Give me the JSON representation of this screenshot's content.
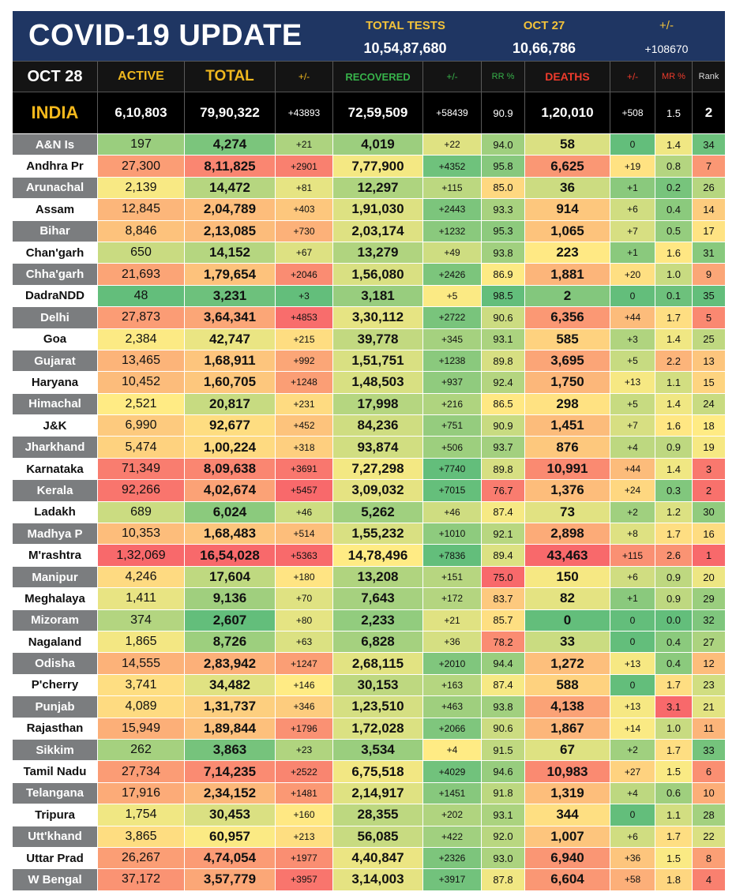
{
  "banner": {
    "title": "COVID-19 UPDATE",
    "total_tests_label": "TOTAL TESTS",
    "total_tests_value": "10,54,87,680",
    "date_label": "OCT 27",
    "date_value": "10,66,786",
    "delta_label": "+/-",
    "delta_value": "+108670"
  },
  "header": {
    "date": "OCT 28",
    "active": "ACTIVE",
    "total": "TOTAL",
    "pm1": "+/-",
    "recovered": "RECOVERED",
    "pm2": "+/-",
    "rr": "RR %",
    "deaths": "DEATHS",
    "pm3": "+/-",
    "mr": "MR %",
    "rank": "Rank"
  },
  "india": {
    "name": "INDIA",
    "active": "6,10,803",
    "total": "79,90,322",
    "total_delta": "+43893",
    "recovered": "72,59,509",
    "recovered_delta": "+58439",
    "rr": "90.9",
    "deaths": "1,20,010",
    "deaths_delta": "+508",
    "mr": "1.5",
    "rank": "2"
  },
  "colors": {
    "banner": "#1f3663",
    "header_bg": "#141414",
    "accent_yellow": "#f0b81e",
    "accent_green": "#37b24a",
    "accent_red": "#ef3b2c"
  },
  "rows": [
    {
      "state": "A&N Is",
      "active": "197",
      "total": "4,274",
      "td": "+21",
      "rec": "4,019",
      "rd": "+22",
      "rr": "94.0",
      "deaths": "58",
      "dd": "0",
      "mr": "1.4",
      "rank": "34"
    },
    {
      "state": "Andhra Pr",
      "active": "27,300",
      "total": "8,11,825",
      "td": "+2901",
      "rec": "7,77,900",
      "rd": "+4352",
      "rr": "95.8",
      "deaths": "6,625",
      "dd": "+19",
      "mr": "0.8",
      "rank": "7"
    },
    {
      "state": "Arunachal",
      "active": "2,139",
      "total": "14,472",
      "td": "+81",
      "rec": "12,297",
      "rd": "+115",
      "rr": "85.0",
      "deaths": "36",
      "dd": "+1",
      "mr": "0.2",
      "rank": "26"
    },
    {
      "state": "Assam",
      "active": "12,845",
      "total": "2,04,789",
      "td": "+403",
      "rec": "1,91,030",
      "rd": "+2443",
      "rr": "93.3",
      "deaths": "914",
      "dd": "+6",
      "mr": "0.4",
      "rank": "14"
    },
    {
      "state": "Bihar",
      "active": "8,846",
      "total": "2,13,085",
      "td": "+730",
      "rec": "2,03,174",
      "rd": "+1232",
      "rr": "95.3",
      "deaths": "1,065",
      "dd": "+7",
      "mr": "0.5",
      "rank": "17"
    },
    {
      "state": "Chan'garh",
      "active": "650",
      "total": "14,152",
      "td": "+67",
      "rec": "13,279",
      "rd": "+49",
      "rr": "93.8",
      "deaths": "223",
      "dd": "+1",
      "mr": "1.6",
      "rank": "31"
    },
    {
      "state": "Chha'garh",
      "active": "21,693",
      "total": "1,79,654",
      "td": "+2046",
      "rec": "1,56,080",
      "rd": "+2426",
      "rr": "86.9",
      "deaths": "1,881",
      "dd": "+20",
      "mr": "1.0",
      "rank": "9"
    },
    {
      "state": "DadraNDD",
      "active": "48",
      "total": "3,231",
      "td": "+3",
      "rec": "3,181",
      "rd": "+5",
      "rr": "98.5",
      "deaths": "2",
      "dd": "0",
      "mr": "0.1",
      "rank": "35"
    },
    {
      "state": "Delhi",
      "active": "27,873",
      "total": "3,64,341",
      "td": "+4853",
      "rec": "3,30,112",
      "rd": "+2722",
      "rr": "90.6",
      "deaths": "6,356",
      "dd": "+44",
      "mr": "1.7",
      "rank": "5"
    },
    {
      "state": "Goa",
      "active": "2,384",
      "total": "42,747",
      "td": "+215",
      "rec": "39,778",
      "rd": "+345",
      "rr": "93.1",
      "deaths": "585",
      "dd": "+3",
      "mr": "1.4",
      "rank": "25"
    },
    {
      "state": "Gujarat",
      "active": "13,465",
      "total": "1,68,911",
      "td": "+992",
      "rec": "1,51,751",
      "rd": "+1238",
      "rr": "89.8",
      "deaths": "3,695",
      "dd": "+5",
      "mr": "2.2",
      "rank": "13"
    },
    {
      "state": "Haryana",
      "active": "10,452",
      "total": "1,60,705",
      "td": "+1248",
      "rec": "1,48,503",
      "rd": "+937",
      "rr": "92.4",
      "deaths": "1,750",
      "dd": "+13",
      "mr": "1.1",
      "rank": "15"
    },
    {
      "state": "Himachal",
      "active": "2,521",
      "total": "20,817",
      "td": "+231",
      "rec": "17,998",
      "rd": "+216",
      "rr": "86.5",
      "deaths": "298",
      "dd": "+5",
      "mr": "1.4",
      "rank": "24"
    },
    {
      "state": "J&K",
      "active": "6,990",
      "total": "92,677",
      "td": "+452",
      "rec": "84,236",
      "rd": "+751",
      "rr": "90.9",
      "deaths": "1,451",
      "dd": "+7",
      "mr": "1.6",
      "rank": "18"
    },
    {
      "state": "Jharkhand",
      "active": "5,474",
      "total": "1,00,224",
      "td": "+318",
      "rec": "93,874",
      "rd": "+506",
      "rr": "93.7",
      "deaths": "876",
      "dd": "+4",
      "mr": "0.9",
      "rank": "19"
    },
    {
      "state": "Karnataka",
      "active": "71,349",
      "total": "8,09,638",
      "td": "+3691",
      "rec": "7,27,298",
      "rd": "+7740",
      "rr": "89.8",
      "deaths": "10,991",
      "dd": "+44",
      "mr": "1.4",
      "rank": "3"
    },
    {
      "state": "Kerala",
      "active": "92,266",
      "total": "4,02,674",
      "td": "+5457",
      "rec": "3,09,032",
      "rd": "+7015",
      "rr": "76.7",
      "deaths": "1,376",
      "dd": "+24",
      "mr": "0.3",
      "rank": "2"
    },
    {
      "state": "Ladakh",
      "active": "689",
      "total": "6,024",
      "td": "+46",
      "rec": "5,262",
      "rd": "+46",
      "rr": "87.4",
      "deaths": "73",
      "dd": "+2",
      "mr": "1.2",
      "rank": "30"
    },
    {
      "state": "Madhya P",
      "active": "10,353",
      "total": "1,68,483",
      "td": "+514",
      "rec": "1,55,232",
      "rd": "+1010",
      "rr": "92.1",
      "deaths": "2,898",
      "dd": "+8",
      "mr": "1.7",
      "rank": "16"
    },
    {
      "state": "M'rashtra",
      "active": "1,32,069",
      "total": "16,54,028",
      "td": "+5363",
      "rec": "14,78,496",
      "rd": "+7836",
      "rr": "89.4",
      "deaths": "43,463",
      "dd": "+115",
      "mr": "2.6",
      "rank": "1"
    },
    {
      "state": "Manipur",
      "active": "4,246",
      "total": "17,604",
      "td": "+180",
      "rec": "13,208",
      "rd": "+151",
      "rr": "75.0",
      "deaths": "150",
      "dd": "+6",
      "mr": "0.9",
      "rank": "20"
    },
    {
      "state": "Meghalaya",
      "active": "1,411",
      "total": "9,136",
      "td": "+70",
      "rec": "7,643",
      "rd": "+172",
      "rr": "83.7",
      "deaths": "82",
      "dd": "+1",
      "mr": "0.9",
      "rank": "29"
    },
    {
      "state": "Mizoram",
      "active": "374",
      "total": "2,607",
      "td": "+80",
      "rec": "2,233",
      "rd": "+21",
      "rr": "85.7",
      "deaths": "0",
      "dd": "0",
      "mr": "0.0",
      "rank": "32"
    },
    {
      "state": "Nagaland",
      "active": "1,865",
      "total": "8,726",
      "td": "+63",
      "rec": "6,828",
      "rd": "+36",
      "rr": "78.2",
      "deaths": "33",
      "dd": "0",
      "mr": "0.4",
      "rank": "27"
    },
    {
      "state": "Odisha",
      "active": "14,555",
      "total": "2,83,942",
      "td": "+1247",
      "rec": "2,68,115",
      "rd": "+2010",
      "rr": "94.4",
      "deaths": "1,272",
      "dd": "+13",
      "mr": "0.4",
      "rank": "12"
    },
    {
      "state": "P'cherry",
      "active": "3,741",
      "total": "34,482",
      "td": "+146",
      "rec": "30,153",
      "rd": "+163",
      "rr": "87.4",
      "deaths": "588",
      "dd": "0",
      "mr": "1.7",
      "rank": "23"
    },
    {
      "state": "Punjab",
      "active": "4,089",
      "total": "1,31,737",
      "td": "+346",
      "rec": "1,23,510",
      "rd": "+463",
      "rr": "93.8",
      "deaths": "4,138",
      "dd": "+13",
      "mr": "3.1",
      "rank": "21"
    },
    {
      "state": "Rajasthan",
      "active": "15,949",
      "total": "1,89,844",
      "td": "+1796",
      "rec": "1,72,028",
      "rd": "+2066",
      "rr": "90.6",
      "deaths": "1,867",
      "dd": "+14",
      "mr": "1.0",
      "rank": "11"
    },
    {
      "state": "Sikkim",
      "active": "262",
      "total": "3,863",
      "td": "+23",
      "rec": "3,534",
      "rd": "+4",
      "rr": "91.5",
      "deaths": "67",
      "dd": "+2",
      "mr": "1.7",
      "rank": "33"
    },
    {
      "state": "Tamil Nadu",
      "active": "27,734",
      "total": "7,14,235",
      "td": "+2522",
      "rec": "6,75,518",
      "rd": "+4029",
      "rr": "94.6",
      "deaths": "10,983",
      "dd": "+27",
      "mr": "1.5",
      "rank": "6"
    },
    {
      "state": "Telangana",
      "active": "17,916",
      "total": "2,34,152",
      "td": "+1481",
      "rec": "2,14,917",
      "rd": "+1451",
      "rr": "91.8",
      "deaths": "1,319",
      "dd": "+4",
      "mr": "0.6",
      "rank": "10"
    },
    {
      "state": "Tripura",
      "active": "1,754",
      "total": "30,453",
      "td": "+160",
      "rec": "28,355",
      "rd": "+202",
      "rr": "93.1",
      "deaths": "344",
      "dd": "0",
      "mr": "1.1",
      "rank": "28"
    },
    {
      "state": "Utt'khand",
      "active": "3,865",
      "total": "60,957",
      "td": "+213",
      "rec": "56,085",
      "rd": "+422",
      "rr": "92.0",
      "deaths": "1,007",
      "dd": "+6",
      "mr": "1.7",
      "rank": "22"
    },
    {
      "state": "Uttar Prad",
      "active": "26,267",
      "total": "4,74,054",
      "td": "+1977",
      "rec": "4,40,847",
      "rd": "+2326",
      "rr": "93.0",
      "deaths": "6,940",
      "dd": "+36",
      "mr": "1.5",
      "rank": "8"
    },
    {
      "state": "W Bengal",
      "active": "37,172",
      "total": "3,57,779",
      "td": "+3957",
      "rec": "3,14,003",
      "rd": "+3917",
      "rr": "87.8",
      "deaths": "6,604",
      "dd": "+58",
      "mr": "1.8",
      "rank": "4"
    }
  ]
}
